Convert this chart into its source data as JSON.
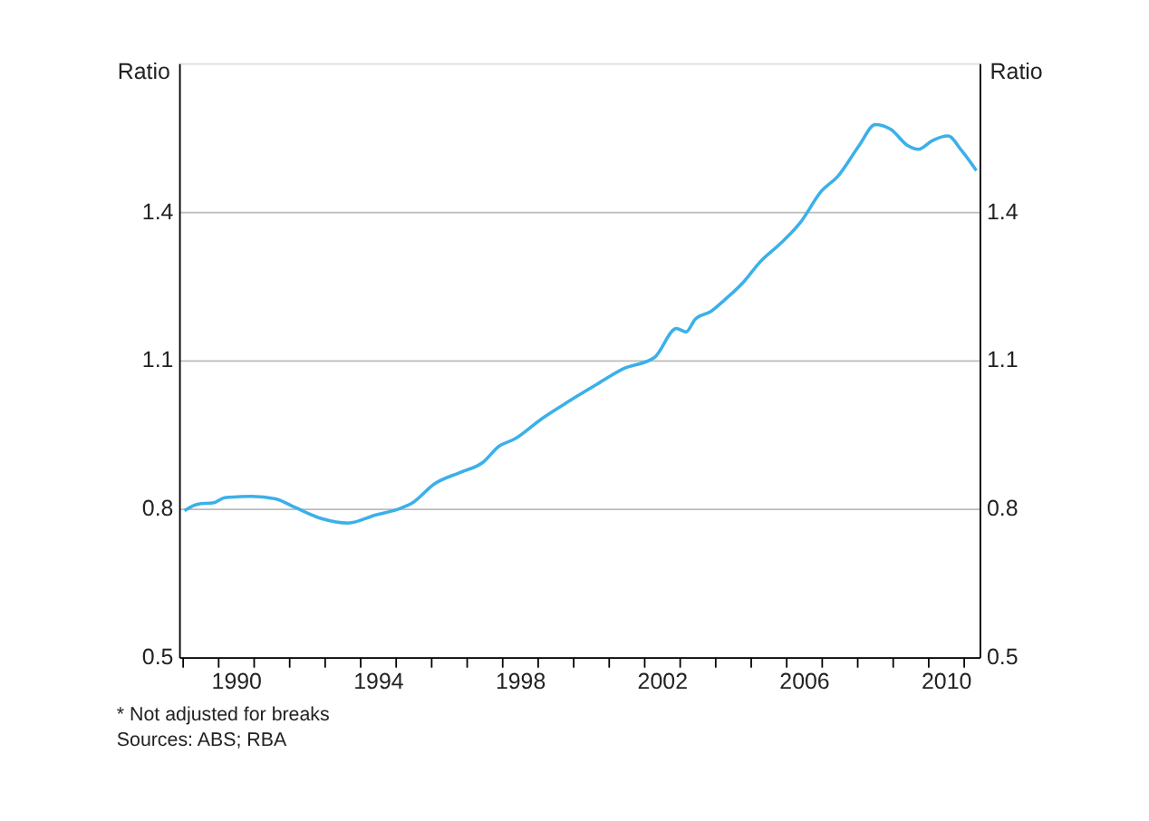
{
  "chart_data": {
    "type": "line",
    "ylabel": "Ratio",
    "y2label": "Ratio",
    "x": [
      1989.05,
      1989.42,
      1989.88,
      1990.18,
      1990.94,
      1991.62,
      1992.15,
      1992.91,
      1993.67,
      1994.42,
      1995.03,
      1995.48,
      1996.09,
      1996.85,
      1997.45,
      1997.91,
      1998.36,
      1999.12,
      1999.88,
      2000.64,
      2001.39,
      2002.3,
      2002.91,
      2003.18,
      2003.44,
      2003.89,
      2004.27,
      2004.8,
      2005.26,
      2005.86,
      2006.39,
      2007.0,
      2007.45,
      2008.06,
      2008.51,
      2008.94,
      2009.42,
      2009.73,
      2010.1,
      2010.56,
      2010.94,
      2011.36
    ],
    "series": [
      {
        "color": "#3bb0ea",
        "values": [
          0.796,
          0.809,
          0.812,
          0.822,
          0.825,
          0.82,
          0.803,
          0.78,
          0.771,
          0.787,
          0.798,
          0.812,
          0.85,
          0.874,
          0.893,
          0.926,
          0.941,
          0.982,
          1.017,
          1.05,
          1.082,
          1.106,
          1.164,
          1.157,
          1.183,
          1.199,
          1.222,
          1.258,
          1.298,
          1.337,
          1.377,
          1.442,
          1.471,
          1.534,
          1.576,
          1.567,
          1.534,
          1.526,
          1.543,
          1.553,
          1.524,
          1.483
        ]
      }
    ],
    "xlim": [
      1988.9,
      2011.45
    ],
    "xticks": [
      {
        "value": 1989,
        "label": null
      },
      {
        "value": 1990,
        "label": null
      },
      {
        "value": 1990.5,
        "label": "1990"
      },
      {
        "value": 1991,
        "label": null
      },
      {
        "value": 1992,
        "label": null
      },
      {
        "value": 1993,
        "label": null
      },
      {
        "value": 1994,
        "label": null
      },
      {
        "value": 1994.5,
        "label": "1994"
      },
      {
        "value": 1995,
        "label": null
      },
      {
        "value": 1996,
        "label": null
      },
      {
        "value": 1997,
        "label": null
      },
      {
        "value": 1998,
        "label": null
      },
      {
        "value": 1998.5,
        "label": "1998"
      },
      {
        "value": 1999,
        "label": null
      },
      {
        "value": 2000,
        "label": null
      },
      {
        "value": 2001,
        "label": null
      },
      {
        "value": 2002,
        "label": null
      },
      {
        "value": 2002.5,
        "label": "2002"
      },
      {
        "value": 2003,
        "label": null
      },
      {
        "value": 2004,
        "label": null
      },
      {
        "value": 2005,
        "label": null
      },
      {
        "value": 2006,
        "label": null
      },
      {
        "value": 2006.5,
        "label": "2006"
      },
      {
        "value": 2007,
        "label": null
      },
      {
        "value": 2008,
        "label": null
      },
      {
        "value": 2009,
        "label": null
      },
      {
        "value": 2010,
        "label": null
      },
      {
        "value": 2010.5,
        "label": "2010"
      },
      {
        "value": 2011,
        "label": null
      }
    ],
    "ylim": [
      0.5,
      1.7
    ],
    "yticks": [
      0.5,
      0.8,
      1.1,
      1.4
    ],
    "y2lim": [
      0.5,
      1.7
    ],
    "y2ticks": [
      0.5,
      0.8,
      1.1,
      1.4
    ],
    "grid": "y",
    "legend": false,
    "line_style": "solid",
    "marker": "none",
    "annotations": [
      "*     Not adjusted for breaks",
      "Sources: ABS; RBA"
    ]
  }
}
